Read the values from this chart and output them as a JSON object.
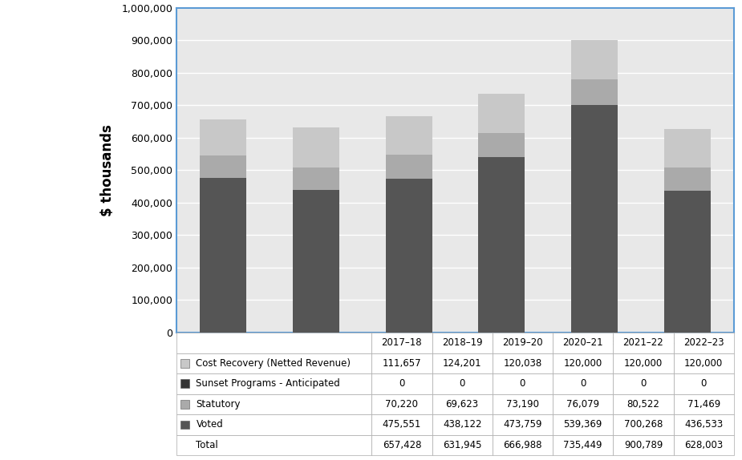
{
  "years": [
    "2017–18",
    "2018–19",
    "2019–20",
    "2020–21",
    "2021–22",
    "2022–23"
  ],
  "voted": [
    475551,
    438122,
    473759,
    539369,
    700268,
    436533
  ],
  "statutory": [
    70220,
    69623,
    73190,
    76079,
    80522,
    71469
  ],
  "sunset": [
    0,
    0,
    0,
    0,
    0,
    0
  ],
  "cost_recovery": [
    111657,
    124201,
    120038,
    120000,
    120000,
    120000
  ],
  "color_voted": "#555555",
  "color_statutory": "#aaaaaa",
  "color_sunset": "#333333",
  "color_cost_recovery": "#c8c8c8",
  "ylabel": "$ thousands",
  "ylim_max": 1000000,
  "ytick_step": 100000,
  "chart_bg": "#e8e8e8",
  "outer_bg": "#ffffff",
  "border_color": "#5b9bd5",
  "bar_width": 0.5,
  "table_col0_header": "",
  "table_year_headers": [
    "2017–18",
    "2018–19",
    "2019–20",
    "2020–21",
    "2021–22",
    "2022–23"
  ],
  "table_rows": [
    [
      "Cost Recovery (Netted Revenue)",
      "111,657",
      "124,201",
      "120,038",
      "120,000",
      "120,000",
      "120,000"
    ],
    [
      "Sunset Programs - Anticipated",
      "0",
      "0",
      "0",
      "0",
      "0",
      "0"
    ],
    [
      "Statutory",
      "70,220",
      "69,623",
      "73,190",
      "76,079",
      "80,522",
      "71,469"
    ],
    [
      "Voted",
      "475,551",
      "438,122",
      "473,759",
      "539,369",
      "700,268",
      "436,533"
    ],
    [
      "Total",
      "657,428",
      "631,945",
      "666,988",
      "735,449",
      "900,789",
      "628,003"
    ]
  ],
  "sq_colors": [
    "#c8c8c8",
    "#333333",
    "#aaaaaa",
    "#555555"
  ],
  "sq_row_indices": [
    0,
    1,
    2,
    3
  ]
}
